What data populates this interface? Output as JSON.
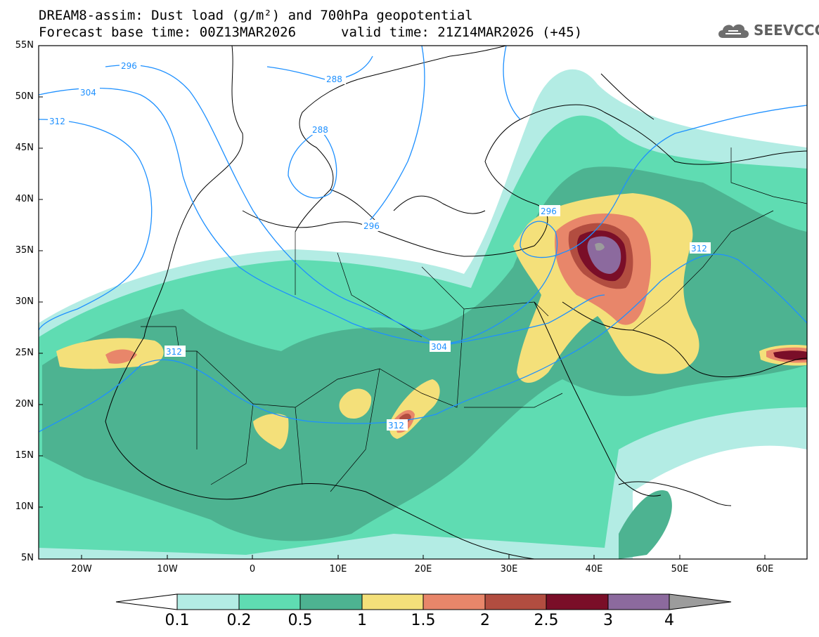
{
  "header": {
    "title_line1": "DREAM8-assim: Dust load (g/m²) and 700hPa geopotential",
    "base_time": "Forecast base time: 00Z13MAR2026",
    "valid_time": "valid time: 21Z14MAR2026 (+45)"
  },
  "logo": {
    "text": "SEEVCCC",
    "icon": "cloud-logo-icon"
  },
  "map": {
    "lat_labels": [
      "55N",
      "50N",
      "45N",
      "40N",
      "35N",
      "30N",
      "25N",
      "20N",
      "15N",
      "10N",
      "5N"
    ],
    "lon_labels": [
      "20W",
      "10W",
      "0",
      "10E",
      "20E",
      "30E",
      "40E",
      "50E",
      "60E"
    ],
    "extent": {
      "lon_min": -25,
      "lon_max": 65,
      "lat_min": 5,
      "lat_max": 55
    },
    "contour_labels": [
      "296",
      "304",
      "312",
      "288",
      "288",
      "296",
      "296",
      "312",
      "312",
      "304",
      "312"
    ],
    "contour_color": "#1e90ff"
  },
  "colorbar": {
    "labels": [
      "0.1",
      "0.2",
      "0.5",
      "1",
      "1.5",
      "2",
      "2.5",
      "3",
      "4"
    ],
    "colors": [
      "#ffffff",
      "#b3ece4",
      "#5fdcb2",
      "#4db391",
      "#f4e07a",
      "#e8866a",
      "#b24d40",
      "#7a0e28",
      "#8c6a9e",
      "#9c9c9c"
    ]
  }
}
